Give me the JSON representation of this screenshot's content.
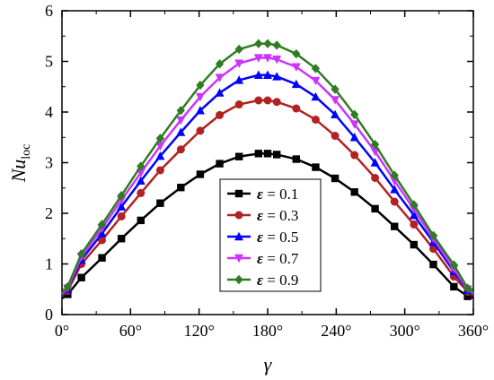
{
  "chart_data": {
    "type": "line",
    "xlabel": "γ",
    "ylabel_main": "Nu",
    "ylabel_sub": "loc",
    "xlim": [
      0,
      360
    ],
    "ylim": [
      0,
      6
    ],
    "xticks": [
      0,
      60,
      120,
      180,
      240,
      300,
      360
    ],
    "xtick_labels": [
      "0°",
      "60°",
      "120°",
      "180°",
      "240°",
      "300°",
      "360°"
    ],
    "yticks": [
      0,
      1,
      2,
      3,
      4,
      5,
      6
    ],
    "ytick_labels": [
      "0",
      "1",
      "2",
      "3",
      "4",
      "5",
      "6"
    ],
    "grid": false,
    "legend_position": "bottom-center",
    "x": [
      0,
      5,
      17,
      35,
      52,
      69,
      86,
      104,
      121,
      138,
      155,
      172,
      180,
      188,
      205,
      222,
      239,
      256,
      274,
      291,
      308,
      325,
      343,
      355,
      360
    ],
    "series": [
      {
        "name": "ε = 0.1",
        "label_symbol": "ε",
        "label_value": "= 0.1",
        "color": "#000000",
        "marker": "square",
        "values": [
          0.32,
          0.4,
          0.73,
          1.12,
          1.5,
          1.86,
          2.2,
          2.51,
          2.77,
          2.98,
          3.12,
          3.18,
          3.18,
          3.16,
          3.07,
          2.91,
          2.69,
          2.42,
          2.09,
          1.74,
          1.38,
          0.99,
          0.55,
          0.36,
          0.33
        ]
      },
      {
        "name": "ε = 0.3",
        "label_symbol": "ε",
        "label_value": "= 0.3",
        "color": "#b22222",
        "marker": "circle",
        "values": [
          0.36,
          0.47,
          1.0,
          1.47,
          1.94,
          2.4,
          2.85,
          3.26,
          3.63,
          3.94,
          4.15,
          4.23,
          4.23,
          4.2,
          4.07,
          3.85,
          3.53,
          3.15,
          2.7,
          2.23,
          1.78,
          1.3,
          0.75,
          0.45,
          0.37
        ]
      },
      {
        "name": "ε = 0.5",
        "label_symbol": "ε",
        "label_value": "= 0.5",
        "color": "#0000ff",
        "marker": "triangle-up",
        "values": [
          0.38,
          0.5,
          1.08,
          1.6,
          2.13,
          2.64,
          3.13,
          3.6,
          4.03,
          4.38,
          4.63,
          4.73,
          4.73,
          4.7,
          4.55,
          4.3,
          3.95,
          3.5,
          3.0,
          2.47,
          1.96,
          1.43,
          0.85,
          0.48,
          0.39
        ]
      },
      {
        "name": "ε = 0.7",
        "label_symbol": "ε",
        "label_value": "= 0.7",
        "color": "#cc33ff",
        "marker": "triangle-down",
        "values": [
          0.4,
          0.52,
          1.14,
          1.7,
          2.26,
          2.8,
          3.33,
          3.84,
          4.3,
          4.68,
          4.96,
          5.07,
          5.07,
          5.04,
          4.89,
          4.62,
          4.24,
          3.76,
          3.22,
          2.64,
          2.08,
          1.5,
          0.9,
          0.5,
          0.41
        ]
      },
      {
        "name": "ε = 0.9",
        "label_symbol": "ε",
        "label_value": "= 0.9",
        "color": "#2e7d20",
        "marker": "diamond",
        "values": [
          0.42,
          0.55,
          1.2,
          1.78,
          2.35,
          2.93,
          3.48,
          4.03,
          4.53,
          4.95,
          5.24,
          5.35,
          5.35,
          5.32,
          5.15,
          4.86,
          4.45,
          3.95,
          3.36,
          2.75,
          2.17,
          1.56,
          0.98,
          0.52,
          0.43
        ]
      }
    ]
  }
}
